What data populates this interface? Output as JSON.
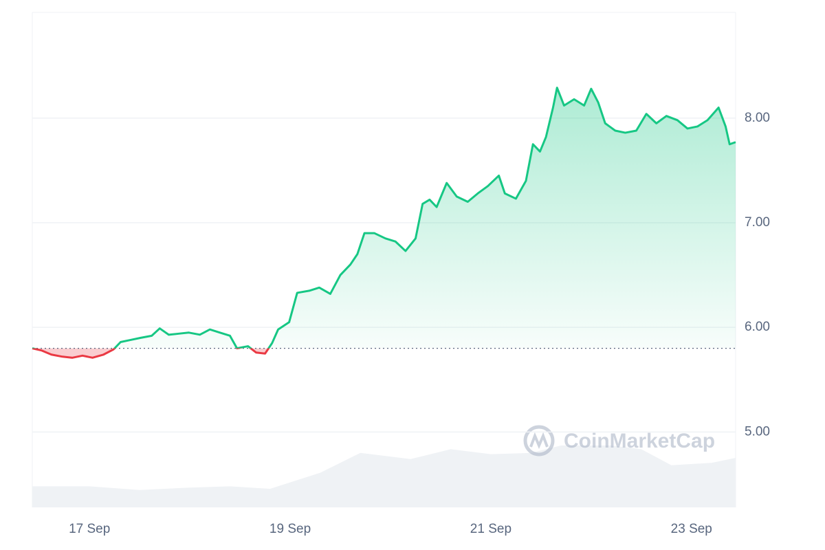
{
  "chart_data": {
    "type": "line",
    "watermark": "CoinMarketCap",
    "x": [
      16.43,
      16.52,
      16.62,
      16.73,
      16.83,
      16.93,
      17.03,
      17.14,
      17.24,
      17.31,
      17.41,
      17.51,
      17.62,
      17.7,
      17.79,
      17.89,
      17.99,
      18.1,
      18.2,
      18.3,
      18.4,
      18.47,
      18.58,
      18.66,
      18.75,
      18.82,
      18.88,
      18.99,
      19.07,
      19.19,
      19.29,
      19.4,
      19.5,
      19.6,
      19.67,
      19.74,
      19.84,
      19.95,
      20.05,
      20.15,
      20.25,
      20.32,
      20.39,
      20.46,
      20.56,
      20.66,
      20.77,
      20.87,
      20.97,
      21.08,
      21.14,
      21.25,
      21.35,
      21.42,
      21.49,
      21.55,
      21.62,
      21.66,
      21.73,
      21.83,
      21.93,
      22.0,
      22.07,
      22.14,
      22.24,
      22.34,
      22.45,
      22.55,
      22.65,
      22.75,
      22.86,
      22.96,
      23.06,
      23.16,
      23.27,
      23.34,
      23.38,
      23.44
    ],
    "series": [
      {
        "color": "#16c784",
        "below_color": "#ea3943",
        "values": [
          5.8,
          5.78,
          5.74,
          5.72,
          5.71,
          5.73,
          5.71,
          5.74,
          5.79,
          5.86,
          5.88,
          5.9,
          5.92,
          5.99,
          5.93,
          5.94,
          5.95,
          5.93,
          5.98,
          5.95,
          5.92,
          5.8,
          5.82,
          5.76,
          5.75,
          5.85,
          5.98,
          6.05,
          6.33,
          6.35,
          6.38,
          6.32,
          6.5,
          6.6,
          6.7,
          6.9,
          6.9,
          6.85,
          6.82,
          6.73,
          6.85,
          7.18,
          7.22,
          7.15,
          7.38,
          7.25,
          7.2,
          7.28,
          7.35,
          7.45,
          7.28,
          7.23,
          7.4,
          7.75,
          7.68,
          7.82,
          8.1,
          8.29,
          8.12,
          8.18,
          8.12,
          8.28,
          8.15,
          7.95,
          7.88,
          7.86,
          7.88,
          8.04,
          7.95,
          8.02,
          7.98,
          7.9,
          7.92,
          7.98,
          8.1,
          7.92,
          7.75,
          7.77
        ]
      }
    ],
    "volume": {
      "color": "#eff2f5",
      "lim": [
        0,
        400
      ],
      "x": [
        16.43,
        17.0,
        17.5,
        18.0,
        18.4,
        18.8,
        19.3,
        19.7,
        20.2,
        20.6,
        21.0,
        21.4,
        21.7,
        22.2,
        22.5,
        22.8,
        23.2,
        23.44
      ],
      "values": [
        17,
        17,
        14,
        16,
        17,
        15,
        28,
        44,
        39,
        47,
        43,
        44,
        50,
        50,
        47,
        34,
        36,
        40
      ]
    },
    "baseline": 5.8,
    "xlim": [
      16.43,
      23.44
    ],
    "xticks": [
      {
        "value": 17,
        "label": "17 Sep"
      },
      {
        "value": 19,
        "label": "19 Sep"
      },
      {
        "value": 21,
        "label": "21 Sep"
      },
      {
        "value": 23,
        "label": "23 Sep"
      }
    ],
    "ylim": [
      4.28,
      9.01
    ],
    "yticks": [
      {
        "value": 5,
        "label": "5.00"
      },
      {
        "value": 6,
        "label": "6.00"
      },
      {
        "value": 7,
        "label": "7.00"
      },
      {
        "value": 8,
        "label": "8.00"
      }
    ],
    "grid": true
  }
}
